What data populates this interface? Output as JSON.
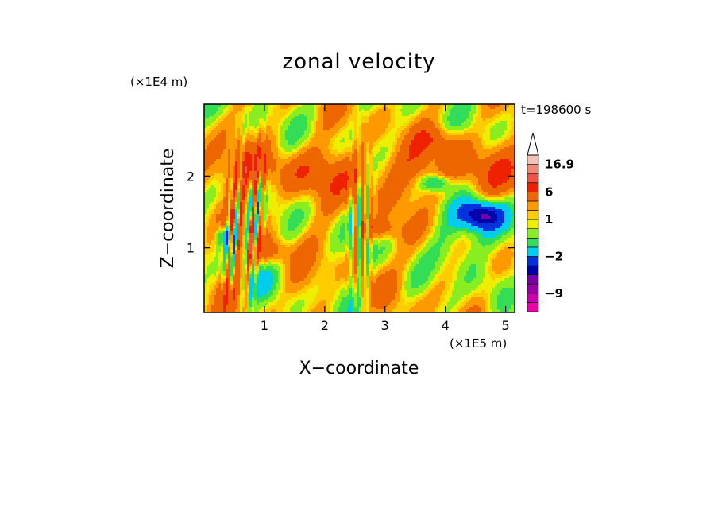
{
  "chart_data": {
    "type": "heatmap",
    "title": "zonal velocity",
    "xlabel": "X−coordinate",
    "ylabel": "Z−coordinate",
    "x_scale_note": "(×1E5 m)",
    "y_scale_note": "(×1E4 m)",
    "time_label": "t=198600 s",
    "xlim": [
      0,
      5.15
    ],
    "ylim": [
      0.1,
      3.0
    ],
    "x_ticks": [
      "1",
      "2",
      "3",
      "4",
      "5"
    ],
    "x_tick_values": [
      1,
      2,
      3,
      4,
      5
    ],
    "y_ticks": [
      "1",
      "2"
    ],
    "y_tick_values": [
      1,
      2
    ],
    "colorbar": {
      "colors": [
        "#ee00aa",
        "#cc00aa",
        "#9900aa",
        "#7700aa",
        "#0000aa",
        "#0033dd",
        "#00ccee",
        "#33dd55",
        "#88ee22",
        "#eeee00",
        "#ffcc00",
        "#ff9900",
        "#ee6600",
        "#ee2200",
        "#ee5544",
        "#ee8877",
        "#f7c0b8"
      ],
      "levels": [
        -12,
        -10.5,
        -9,
        -7.5,
        -6,
        -4,
        -2,
        -1,
        0,
        0.5,
        1,
        2,
        4,
        6,
        9,
        12,
        16.9
      ],
      "labels": [
        "16.9",
        "6",
        "1",
        "−2",
        "−9"
      ],
      "label_positions": [
        16,
        13,
        10,
        6,
        2
      ],
      "extend_top": true
    },
    "field": {
      "description_ref": "zonal velocity contour field, approximated",
      "wave_x_positions": [
        0.55,
        0.75,
        2.6
      ],
      "jet_core": {
        "x": 4.6,
        "z": 1.45,
        "value": -7.5
      },
      "background_warm_zone": {
        "z_min": 1.7,
        "z_max": 2.4,
        "value": 2
      }
    }
  }
}
